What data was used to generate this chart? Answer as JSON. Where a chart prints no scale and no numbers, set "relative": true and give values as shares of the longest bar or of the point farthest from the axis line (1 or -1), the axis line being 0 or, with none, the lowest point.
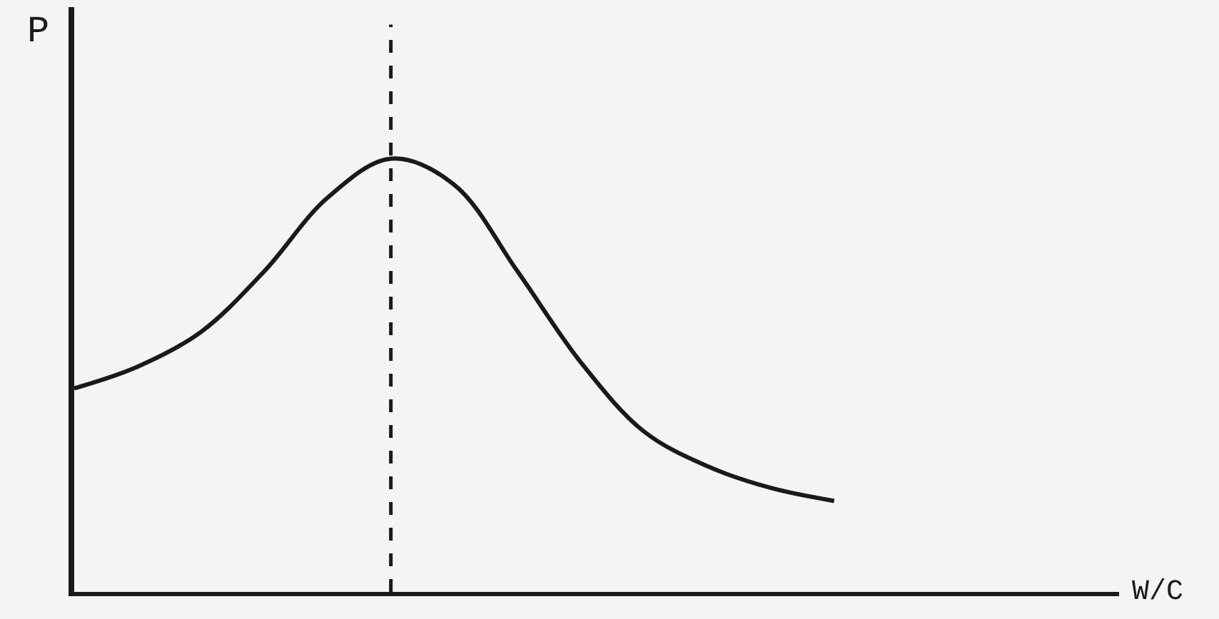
{
  "chart_data": {
    "type": "line",
    "relative": true,
    "annotations": [
      "W/C"
    ],
    "ylabel": "P",
    "categories": [
      null,
      null,
      null,
      null,
      null,
      null,
      null,
      null,
      null,
      null,
      null,
      null,
      null
    ],
    "series": [
      {
        "color": "#1a1a1a",
        "values": [
          0.47,
          0.52,
          0.6,
          0.74,
          0.91,
          1.0,
          0.94,
          0.74,
          0.53,
          0.37,
          0.29,
          0.24,
          0.21
        ]
      }
    ],
    "grid": false,
    "marker": "none",
    "line_style": "solid"
  }
}
